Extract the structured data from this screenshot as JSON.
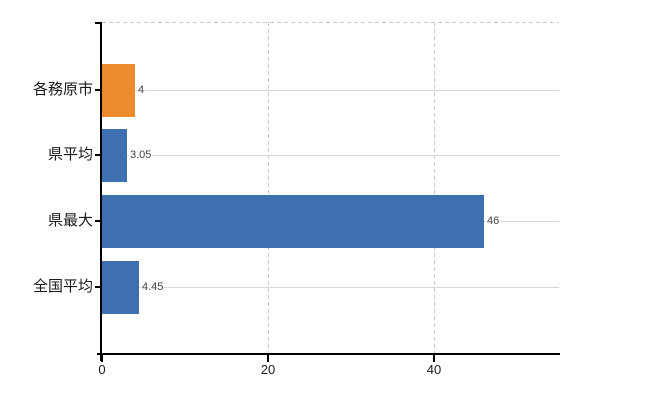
{
  "page": {
    "background_color": "#ffffff"
  },
  "chart_data": {
    "type": "bar",
    "orientation": "horizontal",
    "title": "",
    "xlabel": "",
    "ylabel": "",
    "categories": [
      "各務原市",
      "県平均",
      "県最大",
      "全国平均"
    ],
    "series": [
      {
        "name": "",
        "values": [
          4,
          3.05,
          46,
          4.45
        ]
      }
    ],
    "value_labels": [
      "4",
      "3.05",
      "46",
      "4.45"
    ],
    "bar_colors": [
      "#ee8b2e",
      "#3e6fb0",
      "#3e6fb0",
      "#3e6fb0"
    ],
    "x_tick_labels": [
      "0",
      "20",
      "40"
    ],
    "x_tick_values": [
      0,
      20,
      40
    ],
    "xlim": [
      0,
      55
    ],
    "grid": true,
    "legend_position": "none",
    "colors": {
      "axis": "#000000",
      "gridline_solid": "#d4dad4",
      "gridline_dashed": "#cccccc",
      "value_label_text": "#3d4349",
      "category_label_text": "#1a1a1a",
      "tick_label_text": "#1a1a1a"
    }
  }
}
